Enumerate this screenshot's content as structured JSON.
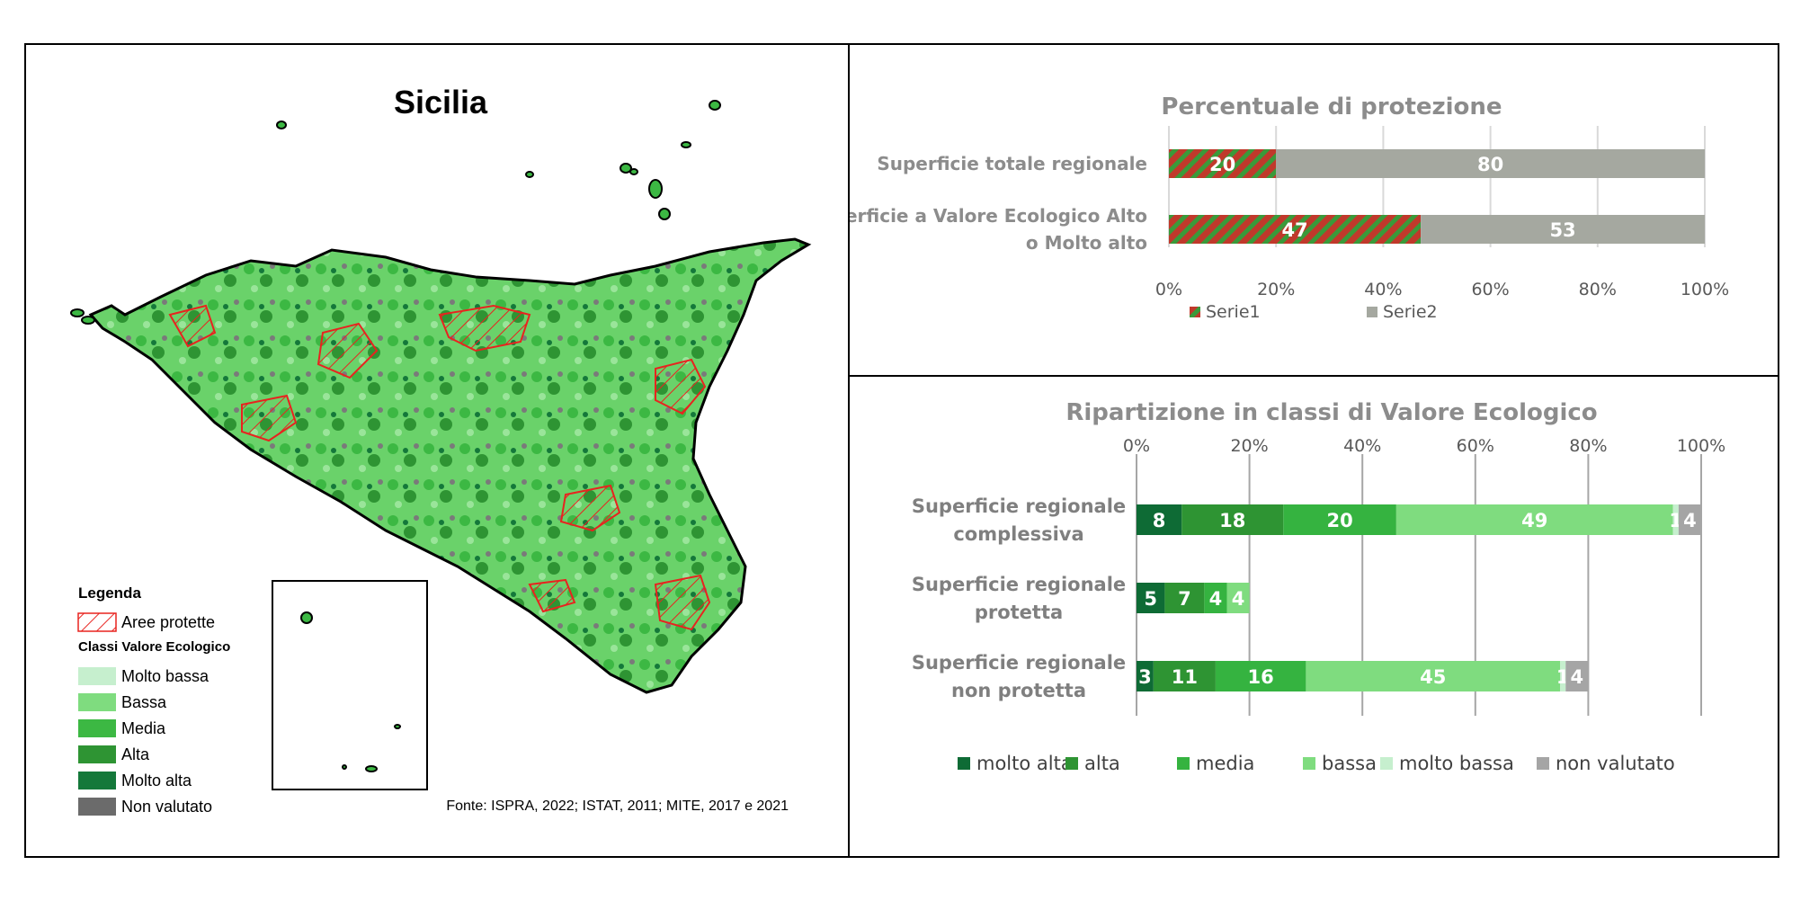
{
  "map": {
    "title": "Sicilia",
    "legend_title": "Legenda",
    "protected_label": "Aree protette",
    "classes_title": "Classi Valore Ecologico",
    "classes": [
      {
        "label": "Molto bassa",
        "color": "#c6efce"
      },
      {
        "label": "Bassa",
        "color": "#7fdc7f"
      },
      {
        "label": "Media",
        "color": "#3cb843"
      },
      {
        "label": "Alta",
        "color": "#2e9433"
      },
      {
        "label": "Molto alta",
        "color": "#14783a"
      },
      {
        "label": "Non valutato",
        "color": "#6b6b6b"
      }
    ],
    "source": "Fonte: ISPRA, 2022; ISTAT, 2011; MITE, 2017 e 2021",
    "protected_color": "#e8231f"
  },
  "chart_data": [
    {
      "type": "bar",
      "orientation": "horizontal",
      "stacked": true,
      "title": "Percentuale di protezione",
      "categories": [
        "Superficie totale regionale",
        "Superficie a Valore Ecologico Alto o Molto alto"
      ],
      "series": [
        {
          "name": "Serie1",
          "values": [
            20,
            47
          ],
          "color": "#c0392b",
          "pattern": "red-green-hatch"
        },
        {
          "name": "Serie2",
          "values": [
            80,
            53
          ],
          "color": "#a5a8a0"
        }
      ],
      "xlim": [
        0,
        100
      ],
      "xticks": [
        "0%",
        "20%",
        "40%",
        "60%",
        "80%",
        "100%"
      ],
      "grid": true,
      "legend": "bottom"
    },
    {
      "type": "bar",
      "orientation": "horizontal",
      "stacked": true,
      "title": "Ripartizione in classi di Valore Ecologico",
      "categories": [
        "Superficie regionale complessiva",
        "Superficie regionale protetta",
        "Superficie regionale non protetta"
      ],
      "series": [
        {
          "name": "molto alta",
          "values": [
            8,
            5,
            3
          ],
          "color": "#0e6b35"
        },
        {
          "name": "alta",
          "values": [
            18,
            7,
            11
          ],
          "color": "#2e9433"
        },
        {
          "name": "media",
          "values": [
            20,
            4,
            16
          ],
          "color": "#35b340"
        },
        {
          "name": "bassa",
          "values": [
            49,
            4,
            45
          ],
          "color": "#7fdc7f"
        },
        {
          "name": "molto bassa",
          "values": [
            1,
            0,
            1
          ],
          "color": "#c6efce"
        },
        {
          "name": "non valutato",
          "values": [
            4,
            0,
            4
          ],
          "color": "#a5a5a5"
        }
      ],
      "xlim": [
        0,
        100
      ],
      "xticks": [
        "0%",
        "20%",
        "40%",
        "60%",
        "80%",
        "100%"
      ],
      "grid": true,
      "legend": "bottom"
    }
  ]
}
